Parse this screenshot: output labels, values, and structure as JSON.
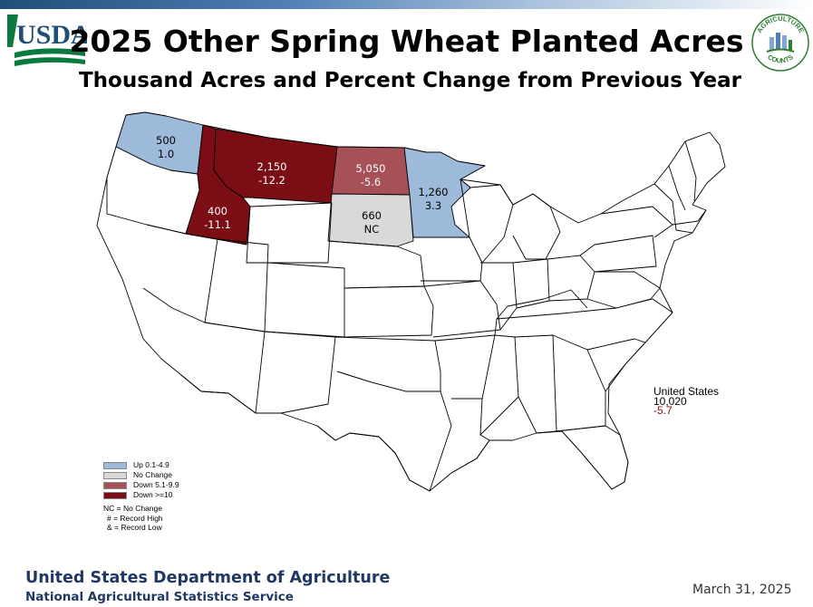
{
  "header": {
    "title": "2025 Other Spring Wheat Planted Acres",
    "subtitle": "Thousand Acres and Percent Change from Previous Year",
    "usda_logo_text": "USDA",
    "ag_counts_logo_text_top": "AGRICULTURE",
    "ag_counts_logo_text_bottom": "COUNTS"
  },
  "colors": {
    "up": "#9dbadb",
    "no_change": "#d9d9d9",
    "down_moderate": "#a65058",
    "down_large": "#7a0e14",
    "white": "#ffffff",
    "footer_blue": "#1f3864",
    "negative_text": "#7a0e14"
  },
  "map_data": {
    "states": [
      {
        "name": "Washington",
        "value": "500",
        "change": "1.0",
        "category": "up"
      },
      {
        "name": "Idaho",
        "value": "400",
        "change": "-11.1",
        "category": "down_large"
      },
      {
        "name": "Montana",
        "value": "2,150",
        "change": "-12.2",
        "category": "down_large"
      },
      {
        "name": "North Dakota",
        "value": "5,050",
        "change": "-5.6",
        "category": "down_moderate"
      },
      {
        "name": "South Dakota",
        "value": "660",
        "change": "NC",
        "category": "no_change"
      },
      {
        "name": "Minnesota",
        "value": "1,260",
        "change": "3.3",
        "category": "up"
      }
    ],
    "united_states": {
      "label": "United States",
      "value": "10,020",
      "change": "-5.7"
    }
  },
  "legend": {
    "items": [
      {
        "label": "Up 0.1-4.9",
        "category": "up"
      },
      {
        "label": "No Change",
        "category": "no_change"
      },
      {
        "label": "Down 5.1-9.9",
        "category": "down_moderate"
      },
      {
        "label": "Down >=10",
        "category": "down_large"
      }
    ],
    "notes": [
      "NC = No Change",
      " # = Record High",
      " & = Record Low"
    ]
  },
  "footer": {
    "department": "United States Department of Agriculture",
    "service": "National Agricultural Statistics Service",
    "date": "March 31, 2025"
  }
}
